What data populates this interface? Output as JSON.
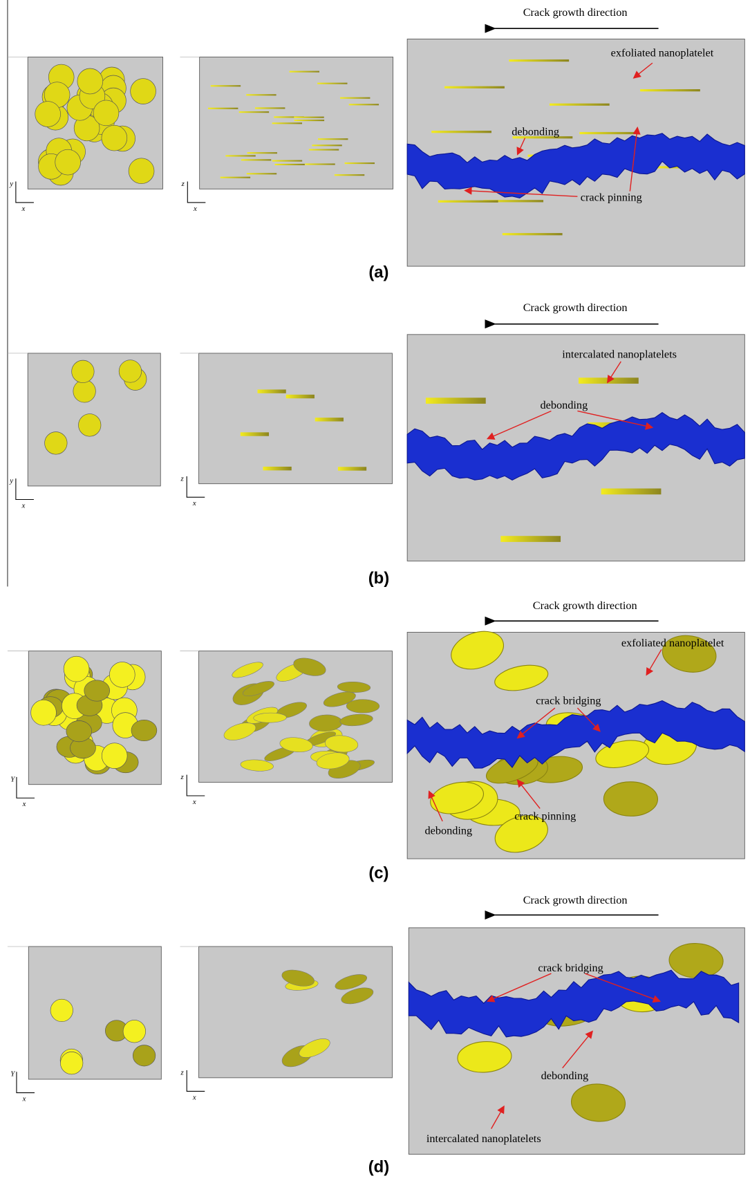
{
  "panels": [
    {
      "label": "(a)",
      "crack_direction": "Crack growth direction",
      "annotations": [
        "exfoliated nanoplatelet",
        "debonding",
        "crack pinning"
      ],
      "axis_labels": {
        "left": [
          "y",
          "x"
        ],
        "middle": [
          "z",
          "x"
        ]
      }
    },
    {
      "label": "(b)",
      "crack_direction": "Crack growth direction",
      "annotations": [
        "intercalated nanoplatelets",
        "debonding"
      ],
      "axis_labels": {
        "left": [
          "y",
          "x"
        ],
        "middle": [
          "z",
          "x"
        ]
      }
    },
    {
      "label": "(c)",
      "crack_direction": "Crack growth direction",
      "annotations": [
        "exfoliated nanoplatelet",
        "crack bridging",
        "crack pinning",
        "debonding"
      ],
      "axis_labels": {
        "left": [
          "Y",
          "x"
        ],
        "middle": [
          "z",
          "x"
        ]
      }
    },
    {
      "label": "(d)",
      "crack_direction": "Crack growth direction",
      "annotations": [
        "crack bridging",
        "debonding",
        "intercalated nanoplatelets"
      ],
      "axis_labels": {
        "left": [
          "Y",
          "x"
        ],
        "middle": [
          "z",
          "x"
        ]
      }
    }
  ]
}
